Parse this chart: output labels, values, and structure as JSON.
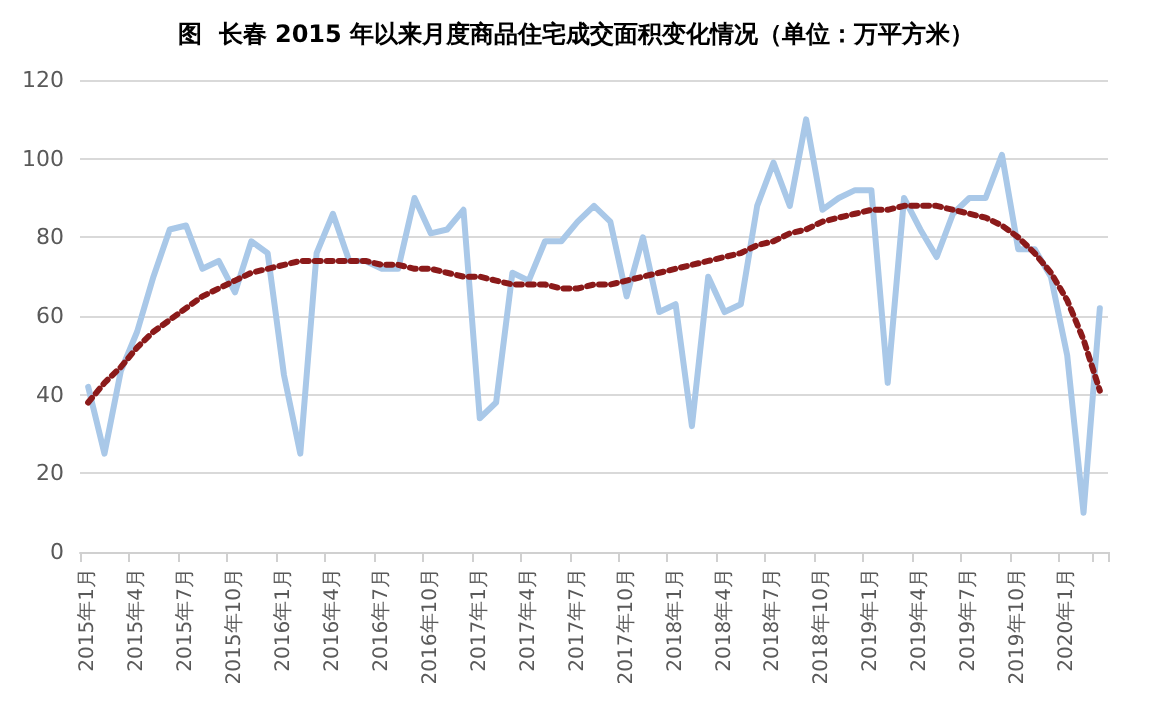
{
  "chart_data": {
    "type": "line",
    "title": "图  长春 2015 年以来月度商品住宅成交面积变化情况（单位：万平方米）",
    "categories": [
      "2015年1月",
      null,
      null,
      "2015年4月",
      null,
      null,
      "2015年7月",
      null,
      null,
      "2015年10月",
      null,
      null,
      "2016年1月",
      null,
      null,
      "2016年4月",
      null,
      null,
      "2016年7月",
      null,
      null,
      "2016年10月",
      null,
      null,
      "2017年1月",
      null,
      null,
      "2017年4月",
      null,
      null,
      "2017年7月",
      null,
      null,
      "2017年10月",
      null,
      null,
      "2018年1月",
      null,
      null,
      "2018年4月",
      null,
      null,
      "2018年7月",
      null,
      null,
      "2018年10月",
      null,
      null,
      "2019年1月",
      null,
      null,
      "2019年4月",
      null,
      null,
      "2019年7月",
      null,
      null,
      "2019年10月",
      null,
      null,
      "2020年1月",
      null,
      null
    ],
    "series": [
      {
        "color": "#a9c8e8",
        "line_style": "solid",
        "values": [
          42,
          25,
          46,
          56,
          70,
          82,
          83,
          72,
          74,
          66,
          79,
          76,
          45,
          25,
          76,
          86,
          74,
          74,
          72,
          72,
          90,
          81,
          82,
          87,
          34,
          38,
          71,
          69,
          79,
          79,
          84,
          88,
          84,
          65,
          80,
          61,
          63,
          32,
          70,
          61,
          63,
          88,
          99,
          88,
          110,
          87,
          90,
          92,
          92,
          43,
          90,
          82,
          75,
          86,
          90,
          90,
          101,
          77,
          77,
          70,
          50,
          10,
          62
        ]
      },
      {
        "color": "#8b1a1a",
        "line_style": "dotted",
        "values": [
          38,
          43,
          47,
          52,
          56,
          59,
          62,
          65,
          67,
          69,
          71,
          72,
          73,
          74,
          74,
          74,
          74,
          74,
          73,
          73,
          72,
          72,
          71,
          70,
          70,
          69,
          68,
          68,
          68,
          67,
          67,
          68,
          68,
          69,
          70,
          71,
          72,
          73,
          74,
          75,
          76,
          78,
          79,
          81,
          82,
          84,
          85,
          86,
          87,
          87,
          88,
          88,
          88,
          87,
          86,
          85,
          83,
          80,
          76,
          71,
          64,
          54,
          41
        ]
      }
    ],
    "ylim": [
      0,
      120
    ],
    "yticks": [
      0,
      20,
      40,
      60,
      80,
      100,
      120
    ],
    "grid": "y",
    "marker": "none"
  }
}
